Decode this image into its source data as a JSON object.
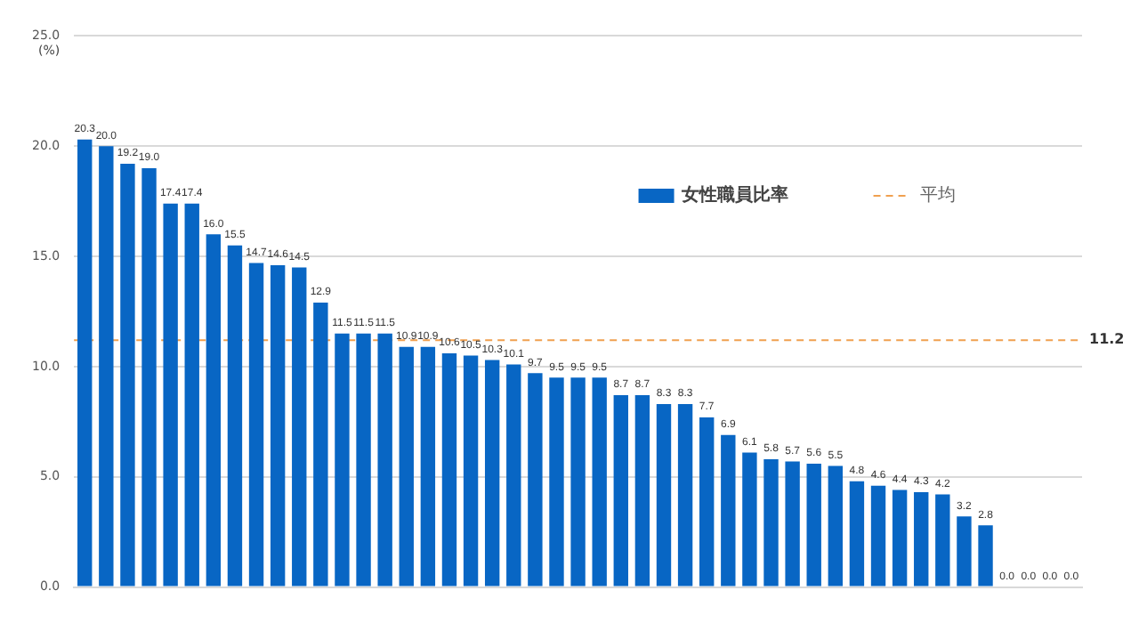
{
  "chart_data": {
    "type": "bar",
    "ylabel": "(%)",
    "categories": [
      null,
      null,
      null,
      null,
      null,
      null,
      null,
      null,
      null,
      null,
      null,
      null,
      null,
      null,
      null,
      null,
      null,
      null,
      null,
      null,
      null,
      null,
      null,
      null,
      null,
      null,
      null,
      null,
      null,
      null,
      null,
      null,
      null,
      null,
      null,
      null,
      null,
      null,
      null,
      null,
      null,
      null,
      null,
      null,
      null,
      null,
      null
    ],
    "series": [
      {
        "name": "女性職員比率",
        "color": "#0866c4",
        "values": [
          20.3,
          20.0,
          19.2,
          19.0,
          17.4,
          17.4,
          16.0,
          15.5,
          14.7,
          14.6,
          14.5,
          12.9,
          11.5,
          11.5,
          11.5,
          10.9,
          10.9,
          10.6,
          10.5,
          10.3,
          10.1,
          9.7,
          9.5,
          9.5,
          9.5,
          8.7,
          8.7,
          8.3,
          8.3,
          7.7,
          6.9,
          6.1,
          5.8,
          5.7,
          5.6,
          5.5,
          4.8,
          4.6,
          4.4,
          4.3,
          4.2,
          3.2,
          2.8,
          0.0,
          0.0,
          0.0,
          0.0
        ],
        "value_labels": [
          "20.3",
          "20.0",
          "19.2",
          "19.0",
          "17.4",
          "17.4",
          "16.0",
          "15.5",
          "14.7",
          "14.6",
          "14.5",
          "12.9",
          "11.5",
          "11.5",
          "11.5",
          "10.9",
          "10.9",
          "10.6",
          "10.5",
          "10.3",
          "10.1",
          "9.7",
          "9.5",
          "9.5",
          "9.5",
          "8.7",
          "8.7",
          "8.3",
          "8.3",
          "7.7",
          "6.9",
          "6.1",
          "5.8",
          "5.7",
          "5.6",
          "5.5",
          "4.8",
          "4.6",
          "4.4",
          "4.3",
          "4.2",
          "3.2",
          "2.8",
          "0.0",
          "0.0",
          "0.0",
          "0.0"
        ]
      }
    ],
    "annotations": [
      "11.2"
    ],
    "ylim": [
      0,
      25
    ],
    "yticks": [
      {
        "value": 0,
        "label": "0.0"
      },
      {
        "value": 5,
        "label": "5.0"
      },
      {
        "value": 10,
        "label": "10.0"
      },
      {
        "value": 15,
        "label": "15.0"
      },
      {
        "value": 20,
        "label": "20.0"
      },
      {
        "value": 25,
        "label": "25.0"
      }
    ],
    "ref_lines": [
      {
        "axis": "y",
        "value": 11.2,
        "label": "平均",
        "color": "#f0a050",
        "line_style": "dashed"
      }
    ],
    "grid": "y",
    "legend": "top right"
  }
}
